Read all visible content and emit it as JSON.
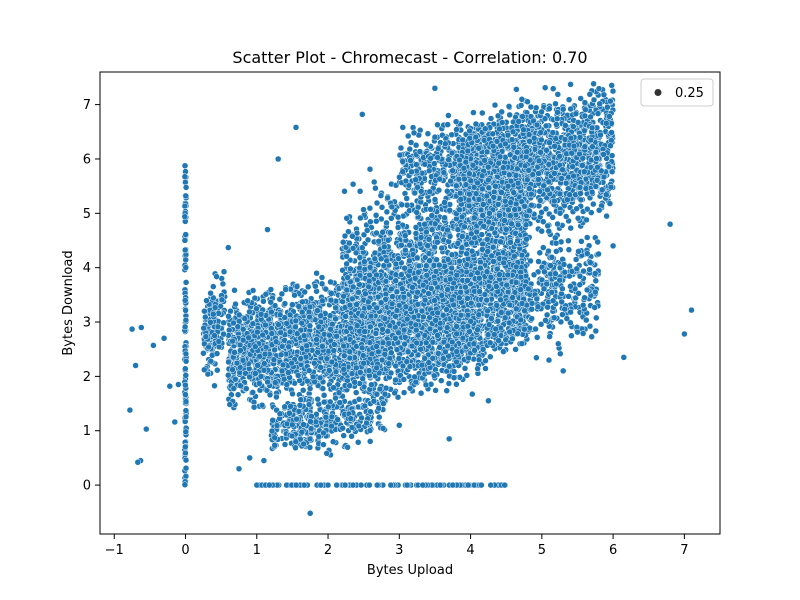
{
  "chart_data": {
    "type": "scatter",
    "title": "Scatter Plot - Chromecast - Correlation: 0.70",
    "xlabel": "Bytes Upload",
    "ylabel": "Bytes Download",
    "xlim": [
      -1.2,
      7.5
    ],
    "ylim": [
      -0.9,
      7.6
    ],
    "xticks": [
      -1,
      0,
      1,
      2,
      3,
      4,
      5,
      6,
      7
    ],
    "yticks": [
      0,
      1,
      2,
      3,
      4,
      5,
      6,
      7
    ],
    "grid": false,
    "legend": {
      "position": "top-right",
      "entries": [
        {
          "label": "0.25"
        }
      ]
    },
    "marker_color": "#1f77b4",
    "marker_edge_color": "#ffffff",
    "series": [
      {
        "clusters": [
          {
            "type": "band",
            "x": [
              0.6,
              4.2
            ],
            "y": [
              1.6,
              3.9
            ],
            "points": 2600
          },
          {
            "type": "band",
            "x": [
              1.2,
              2.8
            ],
            "y": [
              0.6,
              1.8
            ],
            "points": 350
          },
          {
            "type": "band",
            "x": [
              2.2,
              4.8
            ],
            "y": [
              1.8,
              5.8
            ],
            "points": 2400
          },
          {
            "type": "band",
            "x": [
              3.8,
              6.0
            ],
            "y": [
              4.5,
              7.2
            ],
            "points": 1600
          },
          {
            "type": "band",
            "x": [
              3.0,
              5.0
            ],
            "y": [
              5.2,
              6.8
            ],
            "points": 500
          },
          {
            "type": "band",
            "x": [
              4.2,
              5.8
            ],
            "y": [
              2.4,
              4.6
            ],
            "points": 450
          },
          {
            "type": "band",
            "x": [
              0.25,
              0.55
            ],
            "y": [
              1.9,
              3.9
            ],
            "points": 150
          },
          {
            "type": "vline",
            "x": 0.0,
            "y": [
              0.0,
              5.9
            ],
            "points": 120
          },
          {
            "type": "hline",
            "y": 0.0,
            "x": [
              1.0,
              4.5
            ],
            "points": 110
          }
        ],
        "outliers": [
          [
            -0.75,
            2.87
          ],
          [
            -0.62,
            2.9
          ],
          [
            -0.78,
            1.38
          ],
          [
            -0.7,
            2.2
          ],
          [
            -0.63,
            0.45
          ],
          [
            -0.67,
            0.42
          ],
          [
            -0.55,
            1.03
          ],
          [
            -0.45,
            2.57
          ],
          [
            -0.3,
            2.7
          ],
          [
            -0.22,
            1.82
          ],
          [
            -0.15,
            1.16
          ],
          [
            -0.1,
            1.85
          ],
          [
            1.55,
            6.58
          ],
          [
            2.48,
            6.82
          ],
          [
            1.3,
            6.0
          ],
          [
            3.5,
            7.3
          ],
          [
            6.8,
            4.8
          ],
          [
            6.15,
            2.35
          ],
          [
            7.0,
            2.78
          ],
          [
            7.1,
            3.22
          ],
          [
            6.0,
            4.4
          ],
          [
            5.2,
            4.45
          ],
          [
            1.75,
            -0.52
          ],
          [
            0.6,
            4.37
          ],
          [
            1.15,
            4.7
          ],
          [
            5.7,
            2.73
          ],
          [
            5.75,
            3.55
          ],
          [
            5.1,
            2.3
          ],
          [
            5.3,
            2.1
          ],
          [
            4.25,
            1.55
          ],
          [
            3.7,
            0.85
          ],
          [
            3.0,
            1.1
          ],
          [
            0.9,
            0.5
          ],
          [
            0.75,
            0.3
          ],
          [
            1.1,
            0.45
          ]
        ]
      }
    ]
  }
}
